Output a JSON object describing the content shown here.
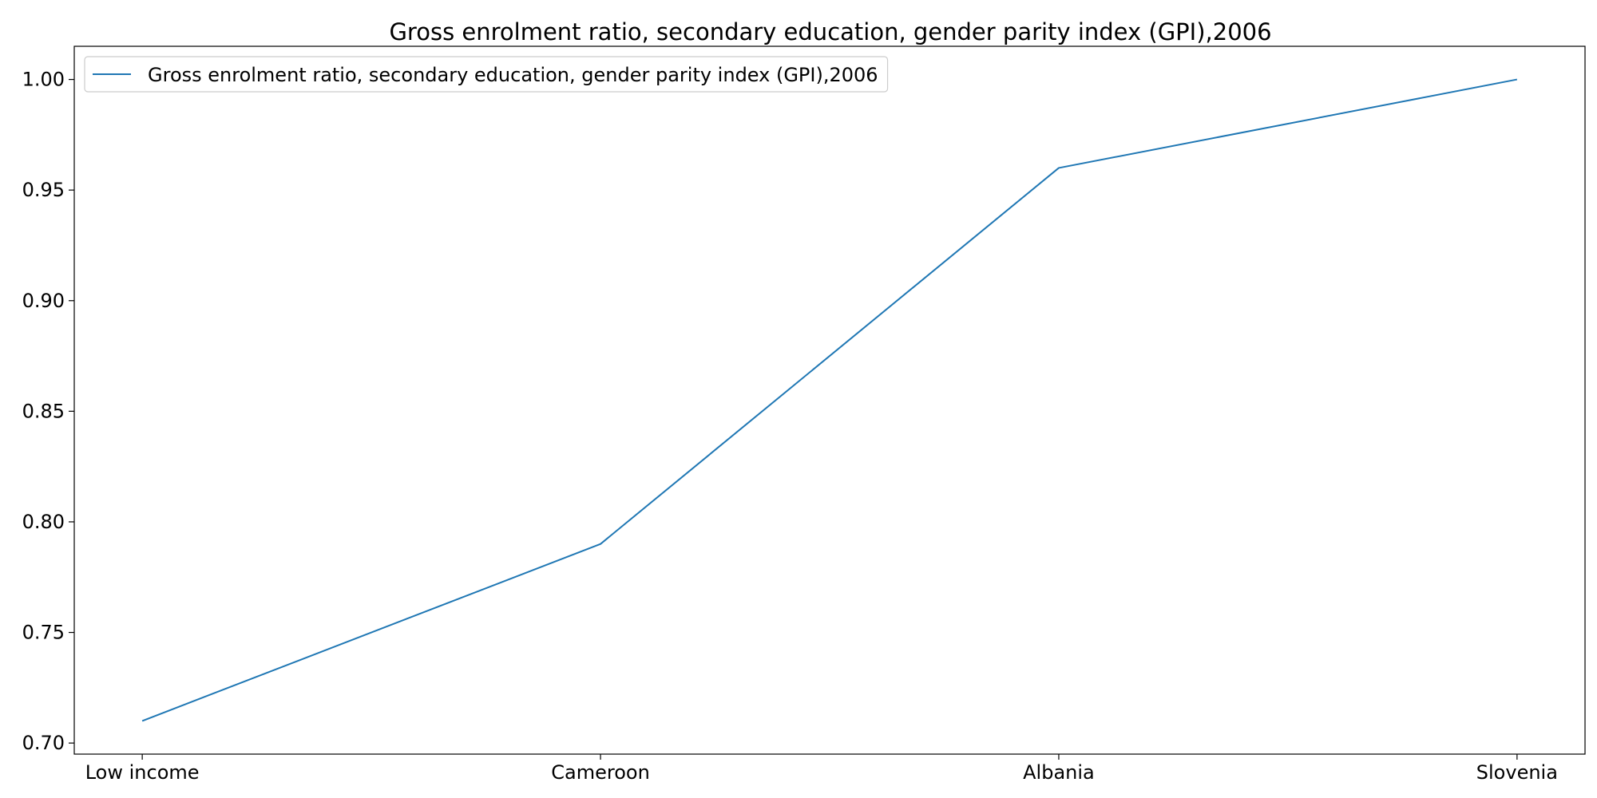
{
  "chart_data": {
    "type": "line",
    "title": "Gross enrolment ratio, secondary education, gender parity index (GPI),2006",
    "categories": [
      "Low income",
      "Cameroon",
      "Albania",
      "Slovenia"
    ],
    "series": [
      {
        "name": "Gross enrolment ratio, secondary education, gender parity index (GPI),2006",
        "values": [
          0.71,
          0.79,
          0.96,
          1.0
        ],
        "color": "#1f77b4"
      }
    ],
    "yticks": [
      "0.70",
      "0.75",
      "0.80",
      "0.85",
      "0.90",
      "0.95",
      "1.00"
    ],
    "ylim": [
      0.695,
      1.015
    ],
    "xlabel": "",
    "ylabel": "",
    "grid": false,
    "legend_position": "top-left"
  }
}
